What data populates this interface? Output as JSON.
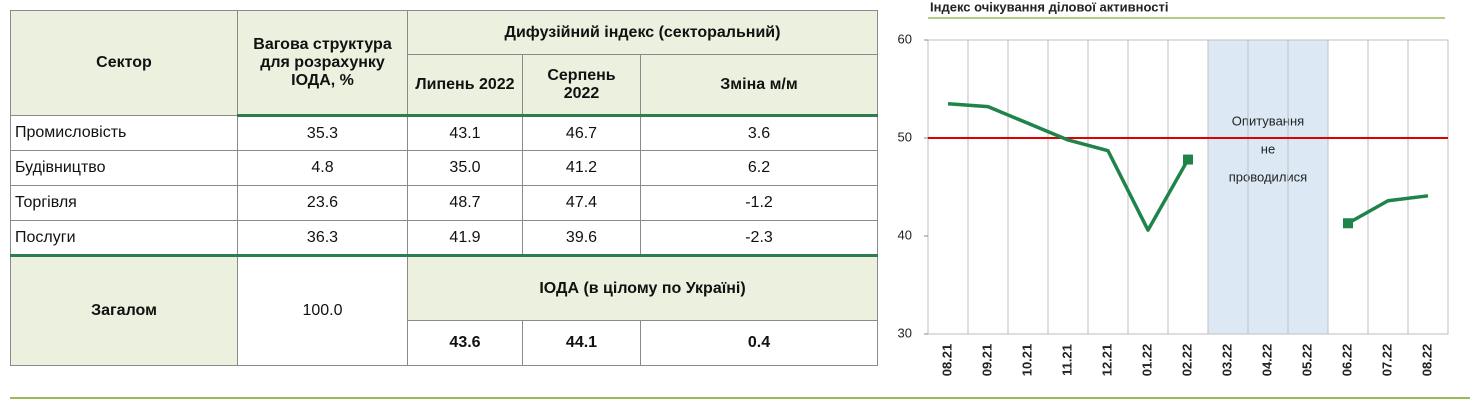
{
  "table": {
    "header": {
      "sector": "Сектор",
      "weight": "Вагова структура для розрахунку ІОДА, %",
      "diffusion": "Дифузійний індекс (секторальний)",
      "july": "Липень 2022",
      "august": "Серпень 2022",
      "change": "Зміна м/м"
    },
    "rows": [
      [
        "Промисловість",
        "35.3",
        "43.1",
        "46.7",
        "3.6"
      ],
      [
        "Будівництво",
        "4.8",
        "35.0",
        "41.2",
        "6.2"
      ],
      [
        "Торгівля",
        "23.6",
        "48.7",
        "47.4",
        "-1.2"
      ],
      [
        "Послуги",
        "36.3",
        "41.9",
        "39.6",
        "-2.3"
      ]
    ],
    "total": {
      "label": "Загалом",
      "weight": "100.0",
      "caption": "ІОДА (в цілому по Україні)",
      "values": [
        "43.6",
        "44.1",
        "0.4"
      ]
    }
  },
  "chart_data": {
    "type": "line",
    "title": "Індекс очікування ділової активності",
    "categories": [
      "08.21",
      "09.21",
      "10.21",
      "11.21",
      "12.21",
      "01.22",
      "02.22",
      "03.22",
      "04.22",
      "05.22",
      "06.22",
      "07.22",
      "08.22"
    ],
    "series": [
      {
        "name": "ІОДА",
        "color": "#1e8449",
        "values": [
          53.5,
          53.2,
          51.5,
          49.8,
          48.7,
          40.6,
          47.8,
          null,
          null,
          null,
          41.3,
          43.6,
          44.1
        ]
      }
    ],
    "ylim": [
      30,
      60
    ],
    "yticks": [
      30,
      40,
      50,
      60
    ],
    "reference_line": {
      "value": 50,
      "color": "#e00000"
    },
    "annotation": [
      "Опитування",
      "не",
      "проводилися"
    ],
    "gap_color": "#dce9f5",
    "grid": true
  }
}
